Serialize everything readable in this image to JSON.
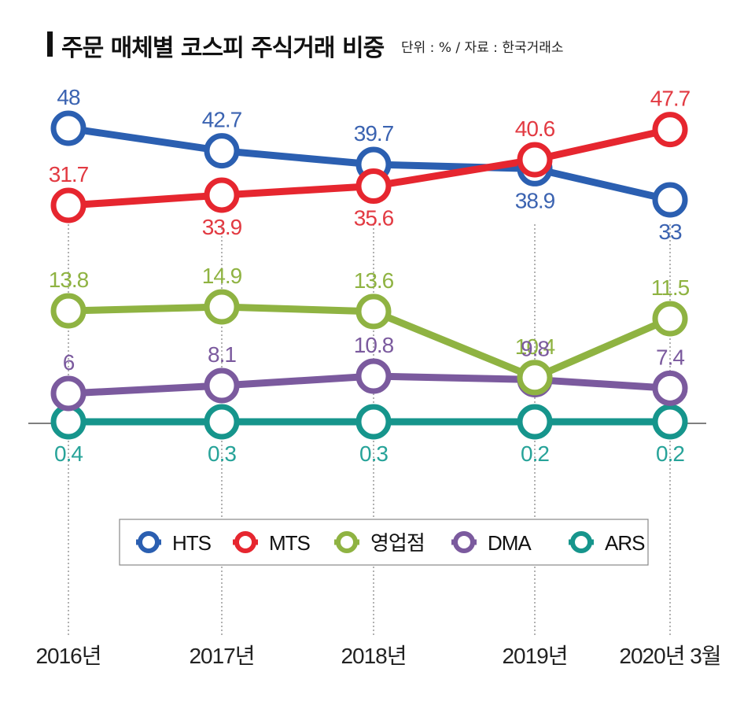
{
  "title": "주문 매체별 코스피 주식거래 비중",
  "source": "단위 : % / 자료 : 한국거래소",
  "chart_data": {
    "type": "line",
    "categories": [
      "2016년",
      "2017년",
      "2018년",
      "2019년",
      "2020년 3월"
    ],
    "unit": "%",
    "legend_position": "bottom-center",
    "grid": false,
    "series": [
      {
        "name": "HTS",
        "color": "#2b5fb1",
        "values": [
          48,
          42.7,
          39.7,
          38.9,
          33
        ]
      },
      {
        "name": "MTS",
        "color": "#e6262f",
        "values": [
          31.7,
          33.9,
          35.6,
          40.6,
          47.7
        ]
      },
      {
        "name": "영업점",
        "color": "#8fb342",
        "values": [
          13.8,
          14.9,
          13.6,
          10.4,
          11.5
        ]
      },
      {
        "name": "DMA",
        "color": "#7b5a9e",
        "values": [
          6,
          8.1,
          10.8,
          9.8,
          7.4
        ]
      },
      {
        "name": "ARS",
        "color": "#16958c",
        "values": [
          0.4,
          0.3,
          0.3,
          0.2,
          0.2
        ]
      }
    ]
  }
}
